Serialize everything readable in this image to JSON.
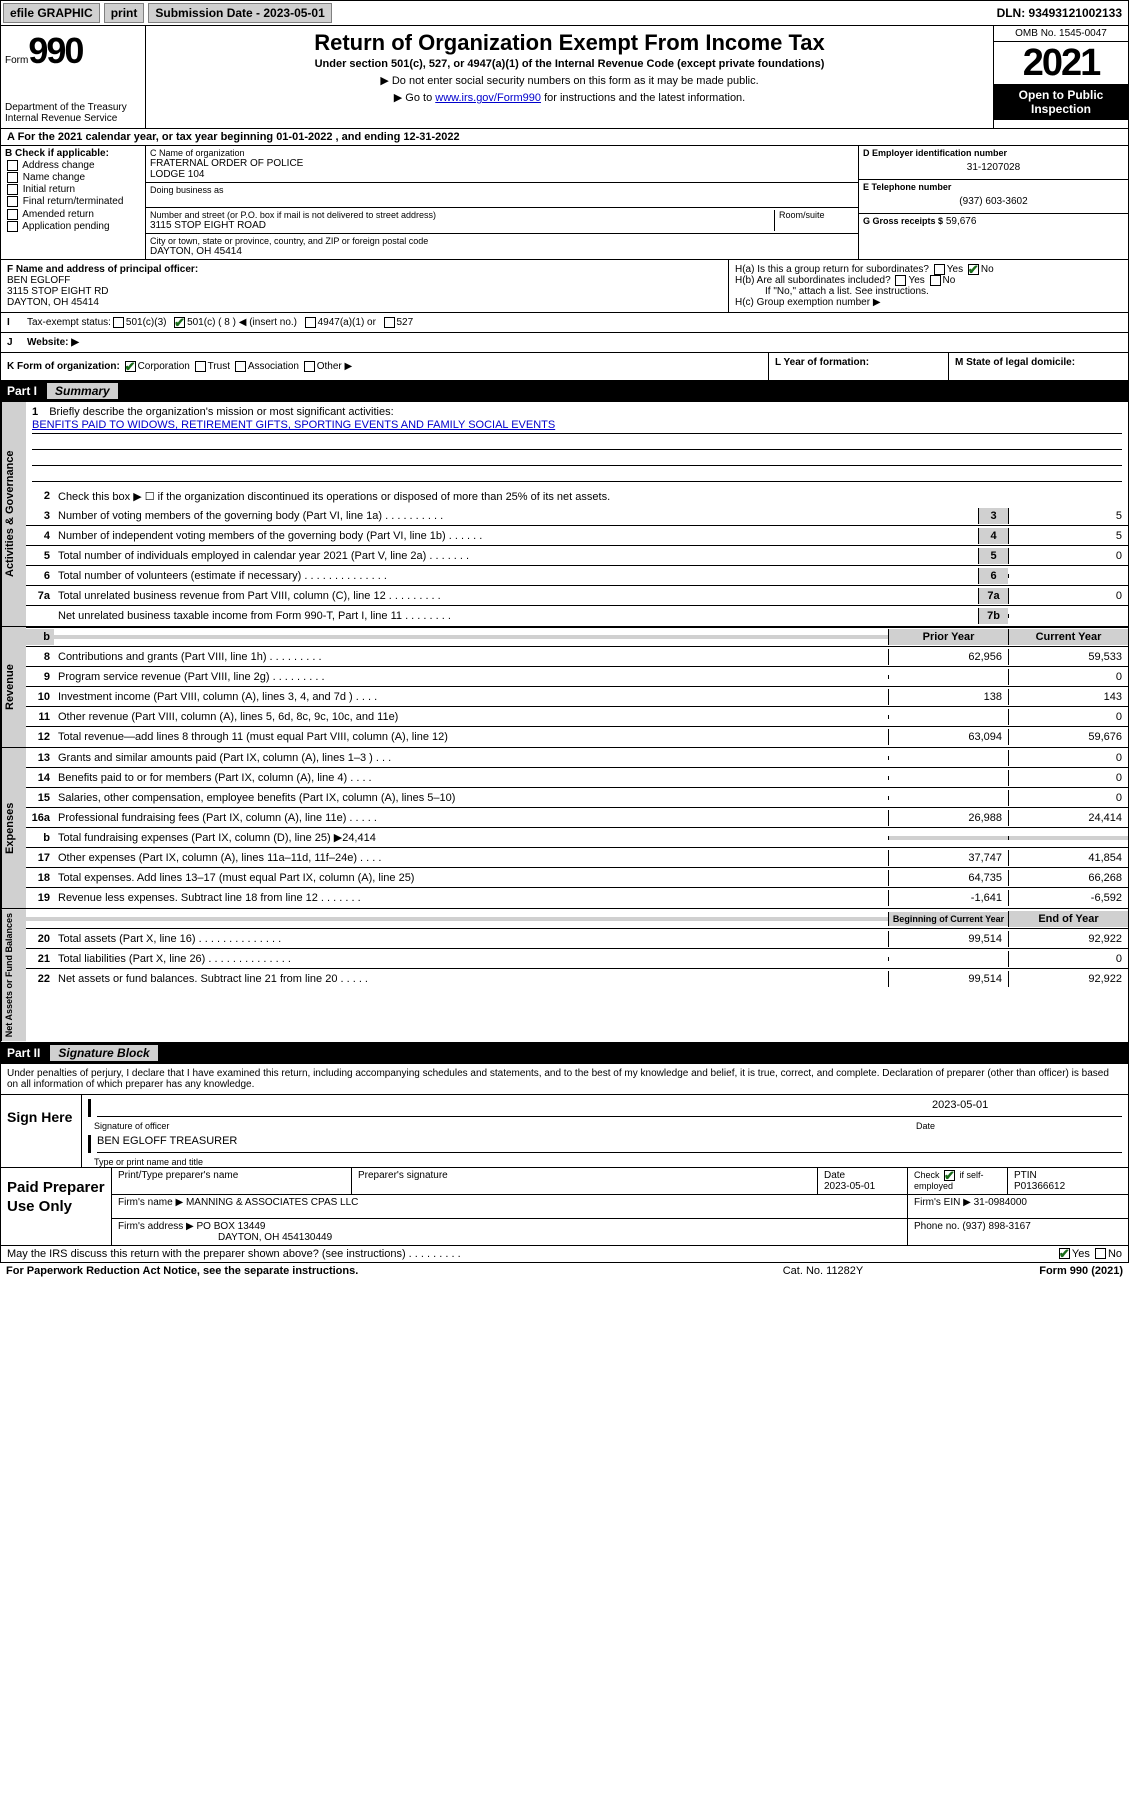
{
  "topbar": {
    "efile": "efile GRAPHIC",
    "print": "print",
    "submission": "Submission Date - 2023-05-01",
    "dln": "DLN: 93493121002133"
  },
  "header": {
    "form_label": "Form",
    "form_number": "990",
    "dept": "Department of the Treasury",
    "irs": "Internal Revenue Service",
    "title": "Return of Organization Exempt From Income Tax",
    "subtitle": "Under section 501(c), 527, or 4947(a)(1) of the Internal Revenue Code (except private foundations)",
    "instr1": "▶ Do not enter social security numbers on this form as it may be made public.",
    "instr2_pre": "▶ Go to ",
    "instr2_link": "www.irs.gov/Form990",
    "instr2_post": " for instructions and the latest information.",
    "omb": "OMB No. 1545-0047",
    "year": "2021",
    "open": "Open to Public Inspection"
  },
  "row_a": "A For the 2021 calendar year, or tax year beginning 01-01-2022   , and ending 12-31-2022",
  "check_b": {
    "label": "B Check if applicable:",
    "items": [
      "Address change",
      "Name change",
      "Initial return",
      "Final return/terminated",
      "Amended return",
      "Application pending"
    ]
  },
  "org": {
    "name_label": "C Name of organization",
    "name": "FRATERNAL ORDER OF POLICE",
    "name2": "LODGE 104",
    "dba_label": "Doing business as",
    "addr_label": "Number and street (or P.O. box if mail is not delivered to street address)",
    "room_label": "Room/suite",
    "addr": "3115 STOP EIGHT ROAD",
    "city_label": "City or town, state or province, country, and ZIP or foreign postal code",
    "city": "DAYTON, OH  45414"
  },
  "col_de": {
    "ein_label": "D Employer identification number",
    "ein": "31-1207028",
    "tel_label": "E Telephone number",
    "tel": "(937) 603-3602",
    "gross_label": "G Gross receipts $",
    "gross": "59,676"
  },
  "officer": {
    "label": "F  Name and address of principal officer:",
    "name": "BEN EGLOFF",
    "addr1": "3115 STOP EIGHT RD",
    "addr2": "DAYTON, OH  45414"
  },
  "h": {
    "a": "H(a)  Is this a group return for subordinates?",
    "b": "H(b)  Are all subordinates included?",
    "b_note": "If \"No,\" attach a list. See instructions.",
    "c": "H(c)  Group exemption number ▶",
    "yes": "Yes",
    "no": "No"
  },
  "row_i": {
    "label": "Tax-exempt status:",
    "opts": [
      "501(c)(3)",
      "501(c) ( 8 ) ◀ (insert no.)",
      "4947(a)(1) or",
      "527"
    ]
  },
  "row_j": "Website: ▶",
  "row_k": {
    "label": "K Form of organization:",
    "opts": [
      "Corporation",
      "Trust",
      "Association",
      "Other ▶"
    ]
  },
  "row_l": "L Year of formation:",
  "row_m": "M State of legal domicile:",
  "part1": {
    "num": "Part I",
    "title": "Summary"
  },
  "mission": {
    "num": "1",
    "label": "Briefly describe the organization's mission or most significant activities:",
    "text": "BENFITS PAID TO WIDOWS, RETIREMENT GIFTS, SPORTING EVENTS AND FAMILY SOCIAL EVENTS"
  },
  "gov_lines": [
    {
      "n": "2",
      "d": "Check this box ▶ ☐  if the organization discontinued its operations or disposed of more than 25% of its net assets."
    },
    {
      "n": "3",
      "d": "Number of voting members of the governing body (Part VI, line 1a)   .    .    .    .    .    .    .    .    .    .",
      "box": "3",
      "v": "5"
    },
    {
      "n": "4",
      "d": "Number of independent voting members of the governing body (Part VI, line 1b)   .    .    .    .    .    .",
      "box": "4",
      "v": "5"
    },
    {
      "n": "5",
      "d": "Total number of individuals employed in calendar year 2021 (Part V, line 2a)   .    .    .    .    .    .    .",
      "box": "5",
      "v": "0"
    },
    {
      "n": "6",
      "d": "Total number of volunteers (estimate if necessary)   .    .    .    .    .    .    .    .    .    .    .    .    .    .",
      "box": "6",
      "v": ""
    },
    {
      "n": "7a",
      "d": "Total unrelated business revenue from Part VIII, column (C), line 12   .    .    .    .    .    .    .    .    .",
      "box": "7a",
      "v": "0"
    },
    {
      "n": "",
      "d": "Net unrelated business taxable income from Form 990-T, Part I, line 11   .    .    .    .    .    .    .    .",
      "box": "7b",
      "v": ""
    }
  ],
  "rev_header": {
    "py": "Prior Year",
    "cy": "Current Year"
  },
  "rev_lines": [
    {
      "n": "8",
      "d": "Contributions and grants (Part VIII, line 1h)   .    .    .    .    .    .    .    .    .",
      "py": "62,956",
      "cy": "59,533"
    },
    {
      "n": "9",
      "d": "Program service revenue (Part VIII, line 2g)   .    .    .    .    .    .    .    .    .",
      "py": "",
      "cy": "0"
    },
    {
      "n": "10",
      "d": "Investment income (Part VIII, column (A), lines 3, 4, and 7d )   .    .    .    .",
      "py": "138",
      "cy": "143"
    },
    {
      "n": "11",
      "d": "Other revenue (Part VIII, column (A), lines 5, 6d, 8c, 9c, 10c, and 11e)",
      "py": "",
      "cy": "0"
    },
    {
      "n": "12",
      "d": "Total revenue—add lines 8 through 11 (must equal Part VIII, column (A), line 12)",
      "py": "63,094",
      "cy": "59,676"
    }
  ],
  "exp_lines": [
    {
      "n": "13",
      "d": "Grants and similar amounts paid (Part IX, column (A), lines 1–3 )   .    .    .",
      "py": "",
      "cy": "0"
    },
    {
      "n": "14",
      "d": "Benefits paid to or for members (Part IX, column (A), line 4)   .    .    .    .",
      "py": "",
      "cy": "0"
    },
    {
      "n": "15",
      "d": "Salaries, other compensation, employee benefits (Part IX, column (A), lines 5–10)",
      "py": "",
      "cy": "0"
    },
    {
      "n": "16a",
      "d": "Professional fundraising fees (Part IX, column (A), line 11e)   .    .    .    .    .",
      "py": "26,988",
      "cy": "24,414"
    },
    {
      "n": "b",
      "d": "Total fundraising expenses (Part IX, column (D), line 25) ▶24,414",
      "py": "shaded",
      "cy": "shaded"
    },
    {
      "n": "17",
      "d": "Other expenses (Part IX, column (A), lines 11a–11d, 11f–24e)   .    .    .    .",
      "py": "37,747",
      "cy": "41,854"
    },
    {
      "n": "18",
      "d": "Total expenses. Add lines 13–17 (must equal Part IX, column (A), line 25)",
      "py": "64,735",
      "cy": "66,268"
    },
    {
      "n": "19",
      "d": "Revenue less expenses. Subtract line 18 from line 12   .    .    .    .    .    .    .",
      "py": "-1,641",
      "cy": "-6,592"
    }
  ],
  "na_header": {
    "py": "Beginning of Current Year",
    "cy": "End of Year"
  },
  "na_lines": [
    {
      "n": "20",
      "d": "Total assets (Part X, line 16)   .    .    .    .    .    .    .    .    .    .    .    .    .    .",
      "py": "99,514",
      "cy": "92,922"
    },
    {
      "n": "21",
      "d": "Total liabilities (Part X, line 26)   .    .    .    .    .    .    .    .    .    .    .    .    .    .",
      "py": "",
      "cy": "0"
    },
    {
      "n": "22",
      "d": "Net assets or fund balances. Subtract line 21 from line 20   .    .    .    .    .",
      "py": "99,514",
      "cy": "92,922"
    }
  ],
  "vtabs": {
    "gov": "Activities & Governance",
    "rev": "Revenue",
    "exp": "Expenses",
    "na": "Net Assets or Fund Balances"
  },
  "part2": {
    "num": "Part II",
    "title": "Signature Block"
  },
  "sig_intro": "Under penalties of perjury, I declare that I have examined this return, including accompanying schedules and statements, and to the best of my knowledge and belief, it is true, correct, and complete. Declaration of preparer (other than officer) is based on all information of which preparer has any knowledge.",
  "sign": {
    "here": "Sign Here",
    "sig_label": "Signature of officer",
    "date_label": "Date",
    "date": "2023-05-01",
    "name": "BEN EGLOFF TREASURER",
    "name_label": "Type or print name and title"
  },
  "paid": {
    "title": "Paid Preparer Use Only",
    "h1": "Print/Type preparer's name",
    "h2": "Preparer's signature",
    "h3": "Date",
    "h3v": "2023-05-01",
    "h4": "Check ☑ if self-employed",
    "h5": "PTIN",
    "h5v": "P01366612",
    "firm_name_l": "Firm's name    ▶",
    "firm_name": "MANNING & ASSOCIATES CPAS LLC",
    "firm_ein_l": "Firm's EIN ▶",
    "firm_ein": "31-0984000",
    "firm_addr_l": "Firm's address ▶",
    "firm_addr1": "PO BOX 13449",
    "firm_addr2": "DAYTON, OH 454130449",
    "phone_l": "Phone no.",
    "phone": "(937) 898-3167"
  },
  "discuss": "May the IRS discuss this return with the preparer shown above? (see instructions)   .    .    .    .    .    .    .    .    .",
  "footer": {
    "left": "For Paperwork Reduction Act Notice, see the separate instructions.",
    "cat": "Cat. No. 11282Y",
    "right": "Form 990 (2021)"
  }
}
